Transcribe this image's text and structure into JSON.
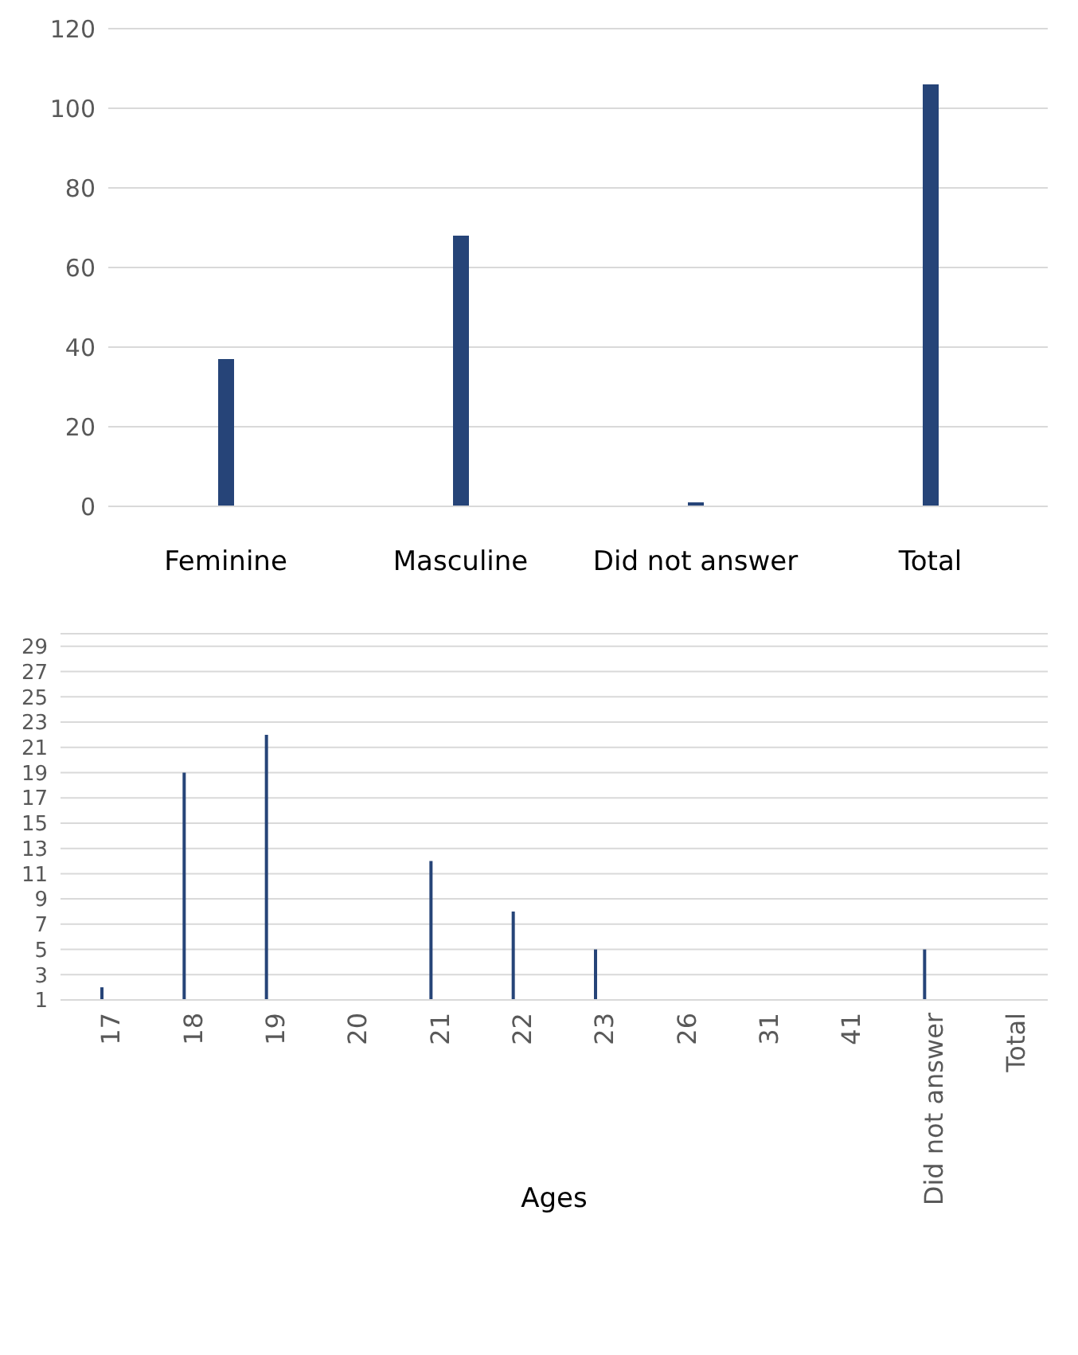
{
  "chart_data": [
    {
      "type": "bar",
      "categories": [
        "Feminine",
        "Masculine",
        "Did not answer",
        "Total"
      ],
      "values": [
        37,
        68,
        1,
        106
      ],
      "color": "#264478",
      "ylim": [
        0,
        120
      ],
      "yticks": [
        0,
        20,
        40,
        60,
        80,
        100,
        120
      ],
      "grid": "y"
    },
    {
      "type": "bar",
      "xlabel": "Ages",
      "categories": [
        "17",
        "18",
        "19",
        "20",
        "21",
        "22",
        "23",
        "26",
        "31",
        "41",
        "Did not answer",
        "Total"
      ],
      "values": [
        2,
        19,
        22,
        null,
        12,
        8,
        5,
        null,
        null,
        null,
        5,
        null
      ],
      "color": "#264478",
      "ylim": [
        1,
        30
      ],
      "yticks": [
        1,
        3,
        5,
        7,
        9,
        11,
        13,
        15,
        17,
        19,
        21,
        23,
        25,
        27,
        29
      ],
      "grid": "y"
    }
  ]
}
